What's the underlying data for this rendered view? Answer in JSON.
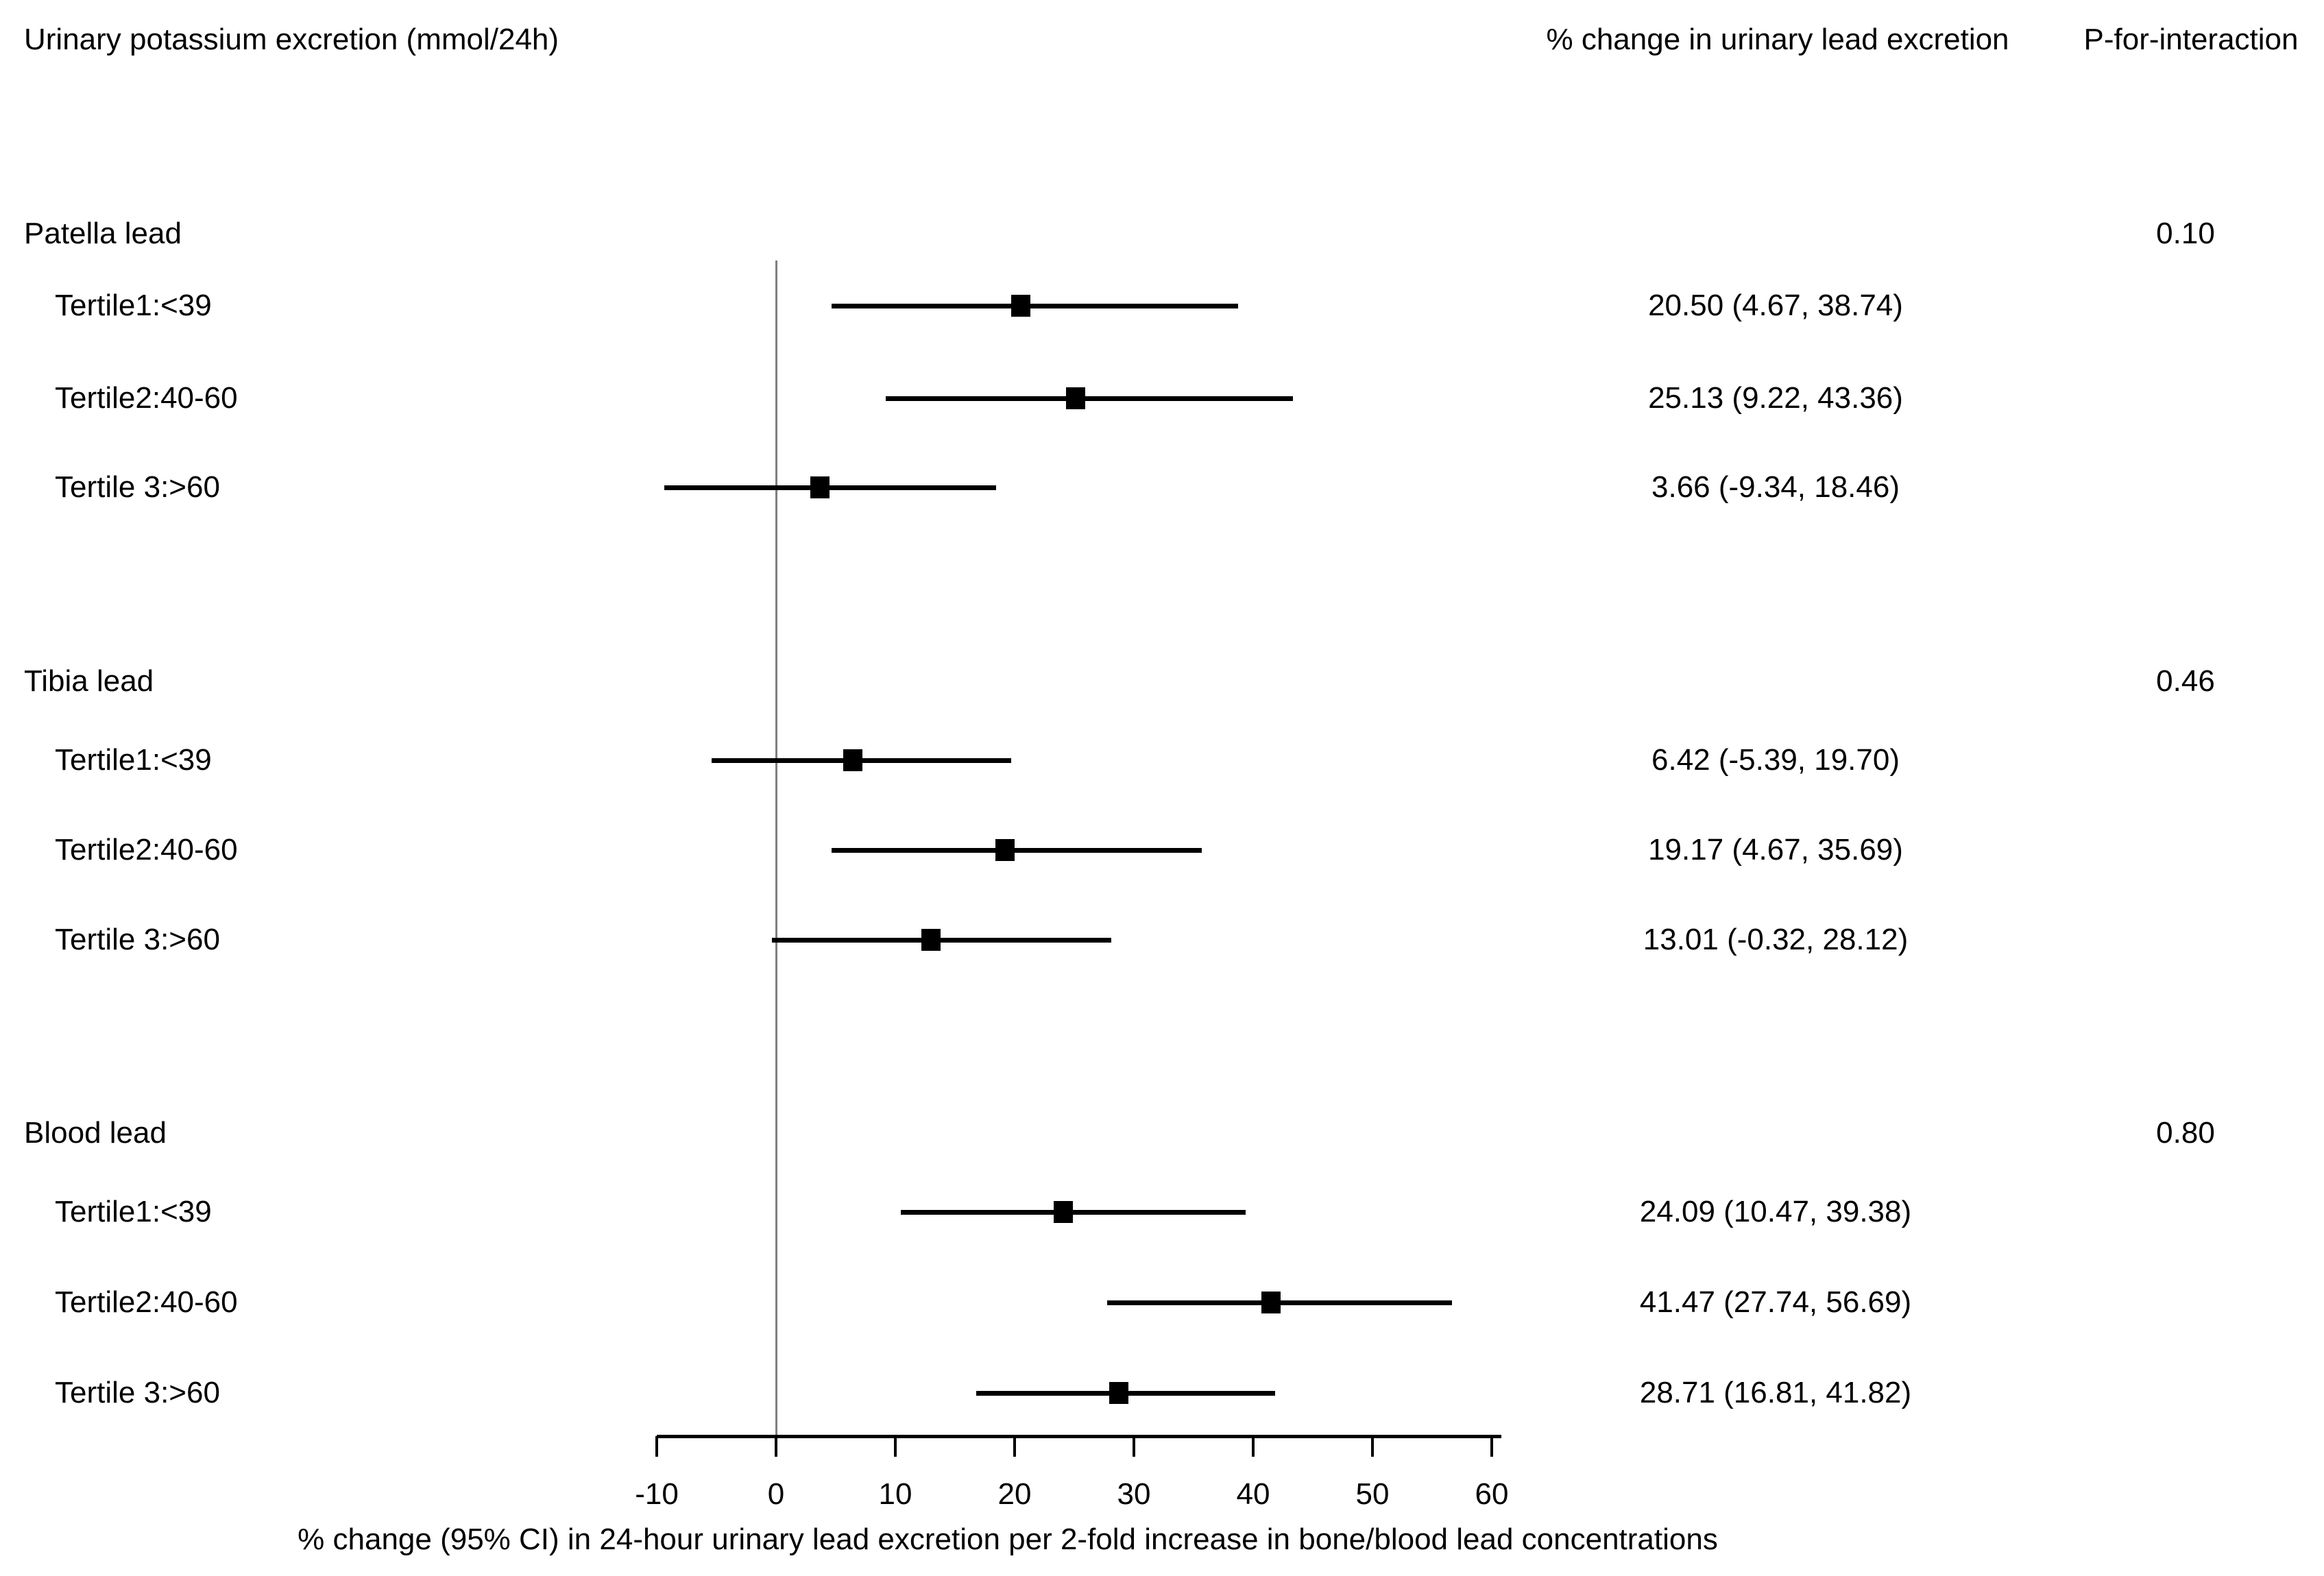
{
  "figure": {
    "col1_header": "Urinary potassium excretion (mmol/24h)",
    "col2_header": "% change in urinary lead excretion",
    "col3_header": "P-for-interaction"
  },
  "chart_data": {
    "type": "forest",
    "xlabel": "% change (95% CI) in 24-hour urinary lead excretion per 2-fold increase in bone/blood lead concentrations",
    "x_ticks": [
      -10,
      0,
      10,
      20,
      30,
      40,
      50,
      60
    ],
    "xlim": [
      -13,
      62
    ],
    "reference_line_x": 0,
    "legend_position": "none",
    "grid": false,
    "sections": [
      {
        "label": "Patella lead",
        "p_for_interaction": "0.10",
        "rows": [
          {
            "label": "Tertile1:<39",
            "estimate": 20.5,
            "ci_lower": 4.67,
            "ci_upper": 38.74,
            "display": "20.50 (4.67, 38.74)"
          },
          {
            "label": "Tertile2:40-60",
            "estimate": 25.13,
            "ci_lower": 9.22,
            "ci_upper": 43.36,
            "display": "25.13 (9.22, 43.36)"
          },
          {
            "label": "Tertile 3:>60",
            "estimate": 3.66,
            "ci_lower": -9.34,
            "ci_upper": 18.46,
            "display": "3.66 (-9.34, 18.46)"
          }
        ]
      },
      {
        "label": "Tibia lead",
        "p_for_interaction": "0.46",
        "rows": [
          {
            "label": "Tertile1:<39",
            "estimate": 6.42,
            "ci_lower": -5.39,
            "ci_upper": 19.7,
            "display": "6.42 (-5.39, 19.70)"
          },
          {
            "label": "Tertile2:40-60",
            "estimate": 19.17,
            "ci_lower": 4.67,
            "ci_upper": 35.69,
            "display": "19.17 (4.67, 35.69)"
          },
          {
            "label": "Tertile 3:>60",
            "estimate": 13.01,
            "ci_lower": -0.32,
            "ci_upper": 28.12,
            "display": "13.01 (-0.32, 28.12)"
          }
        ]
      },
      {
        "label": "Blood lead",
        "p_for_interaction": "0.80",
        "rows": [
          {
            "label": "Tertile1:<39",
            "estimate": 24.09,
            "ci_lower": 10.47,
            "ci_upper": 39.38,
            "display": "24.09 (10.47, 39.38)"
          },
          {
            "label": "Tertile2:40-60",
            "estimate": 41.47,
            "ci_lower": 27.74,
            "ci_upper": 56.69,
            "display": "41.47 (27.74, 56.69)"
          },
          {
            "label": "Tertile 3:>60",
            "estimate": 28.71,
            "ci_lower": 16.81,
            "ci_upper": 41.82,
            "display": "28.71 (16.81, 41.82)"
          }
        ]
      }
    ],
    "colors": {
      "marker": "#000000",
      "ci_line": "#000000",
      "reference_line": "#808080",
      "text": "#000000",
      "background": "#ffffff"
    }
  }
}
